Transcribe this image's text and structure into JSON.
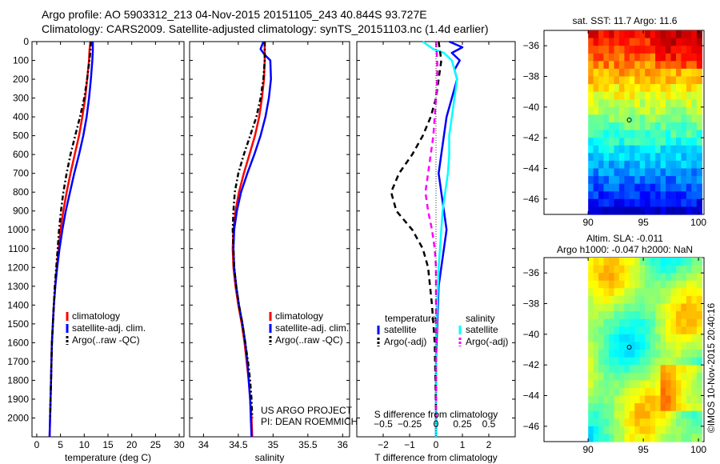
{
  "header": {
    "line1": "Argo profile: AO 5903312_213 04-Nov-2015 20151105_243 40.844S 93.727E",
    "line2": "Climatology: CARS2009. Satellite-adjusted climatology: synTS_20151103.nc (1.4d earlier)"
  },
  "colors": {
    "climatology": "#ff0000",
    "satellite": "#0000ff",
    "argo": "#000000",
    "sat_diff_s": "#00ffff",
    "argo_diff_s": "#ff00ff"
  },
  "credit": {
    "project": "US ARGO PROJECT",
    "pi": "PI: DEAN ROEMMICH"
  },
  "stamp": "©IMOS 10-Nov-2015 20:40:16",
  "chart_data": [
    {
      "type": "line",
      "xlabel": "temperature (deg C)",
      "ylim": [
        2100,
        0
      ],
      "xlim": [
        -1,
        31
      ],
      "xticks": [
        0,
        5,
        10,
        15,
        20,
        25,
        30
      ],
      "yticks": [
        0,
        100,
        200,
        300,
        400,
        500,
        600,
        700,
        800,
        900,
        1000,
        1100,
        1200,
        1300,
        1400,
        1500,
        1600,
        1700,
        1800,
        1900,
        2000
      ],
      "legend": [
        "climatology",
        "satellite-adj. clim.",
        "Argo(..raw -QC)"
      ],
      "series": [
        {
          "name": "climatology",
          "color": "#ff0000",
          "points": [
            [
              11.3,
              0
            ],
            [
              11.1,
              50
            ],
            [
              11.0,
              100
            ],
            [
              10.6,
              200
            ],
            [
              10.2,
              300
            ],
            [
              9.6,
              400
            ],
            [
              8.9,
              500
            ],
            [
              8.0,
              600
            ],
            [
              7.1,
              700
            ],
            [
              6.3,
              800
            ],
            [
              5.6,
              900
            ],
            [
              5.0,
              1000
            ],
            [
              4.6,
              1100
            ],
            [
              4.2,
              1200
            ],
            [
              3.9,
              1300
            ],
            [
              3.6,
              1400
            ],
            [
              3.4,
              1500
            ],
            [
              3.2,
              1600
            ],
            [
              3.1,
              1700
            ],
            [
              3.0,
              1800
            ],
            [
              2.9,
              1900
            ],
            [
              2.8,
              2000
            ],
            [
              2.7,
              2100
            ]
          ]
        },
        {
          "name": "satellite-adj. clim.",
          "color": "#0000ff",
          "points": [
            [
              11.8,
              0
            ],
            [
              11.8,
              50
            ],
            [
              11.7,
              100
            ],
            [
              11.4,
              200
            ],
            [
              11.0,
              300
            ],
            [
              10.5,
              400
            ],
            [
              9.8,
              500
            ],
            [
              8.9,
              600
            ],
            [
              7.9,
              700
            ],
            [
              7.0,
              800
            ],
            [
              6.1,
              900
            ],
            [
              5.4,
              1000
            ],
            [
              4.8,
              1100
            ],
            [
              4.3,
              1200
            ],
            [
              3.9,
              1300
            ],
            [
              3.6,
              1400
            ],
            [
              3.4,
              1500
            ],
            [
              3.2,
              1600
            ],
            [
              3.1,
              1700
            ],
            [
              3.0,
              1800
            ],
            [
              2.9,
              1900
            ],
            [
              2.8,
              2000
            ],
            [
              2.7,
              2100
            ]
          ]
        },
        {
          "name": "Argo(..raw -QC)",
          "color": "#000000",
          "dashed": true,
          "points": [
            [
              11.4,
              0
            ],
            [
              11.3,
              50
            ],
            [
              11.1,
              100
            ],
            [
              10.6,
              200
            ],
            [
              10.0,
              300
            ],
            [
              9.1,
              400
            ],
            [
              8.1,
              500
            ],
            [
              7.1,
              600
            ],
            [
              6.3,
              700
            ],
            [
              5.6,
              800
            ],
            [
              5.1,
              900
            ],
            [
              4.7,
              1000
            ],
            [
              4.4,
              1100
            ],
            [
              4.1,
              1200
            ],
            [
              3.8,
              1300
            ],
            [
              3.6,
              1400
            ],
            [
              3.4,
              1500
            ],
            [
              3.2,
              1600
            ],
            [
              3.1,
              1700
            ],
            [
              3.0,
              1800
            ],
            [
              2.9,
              1900
            ],
            [
              2.8,
              2000
            ]
          ]
        }
      ]
    },
    {
      "type": "line",
      "xlabel": "salinity",
      "ylim": [
        2100,
        0
      ],
      "xlim": [
        33.8,
        36.1
      ],
      "xticks": [
        34,
        34.5,
        35,
        35.5,
        36
      ],
      "xticklabels": [
        "34",
        "34.5",
        "35",
        "35.5",
        "36"
      ],
      "legend": [
        "climatology",
        "satellite-adj. clim.",
        "Argo(..raw -QC)"
      ],
      "series": [
        {
          "name": "climatology",
          "color": "#ff0000",
          "points": [
            [
              34.88,
              0
            ],
            [
              34.88,
              100
            ],
            [
              34.87,
              200
            ],
            [
              34.84,
              300
            ],
            [
              34.8,
              400
            ],
            [
              34.74,
              500
            ],
            [
              34.66,
              600
            ],
            [
              34.58,
              700
            ],
            [
              34.51,
              800
            ],
            [
              34.46,
              900
            ],
            [
              34.43,
              1000
            ],
            [
              34.42,
              1100
            ],
            [
              34.43,
              1200
            ],
            [
              34.46,
              1300
            ],
            [
              34.5,
              1400
            ],
            [
              34.55,
              1500
            ],
            [
              34.59,
              1600
            ],
            [
              34.62,
              1700
            ],
            [
              34.65,
              1800
            ],
            [
              34.67,
              1900
            ],
            [
              34.69,
              2000
            ],
            [
              34.7,
              2100
            ]
          ]
        },
        {
          "name": "satellite-adj. clim.",
          "color": "#0000ff",
          "points": [
            [
              34.86,
              0
            ],
            [
              34.82,
              40
            ],
            [
              34.88,
              70
            ],
            [
              34.96,
              100
            ],
            [
              34.97,
              200
            ],
            [
              34.94,
              300
            ],
            [
              34.89,
              400
            ],
            [
              34.82,
              500
            ],
            [
              34.73,
              600
            ],
            [
              34.63,
              700
            ],
            [
              34.54,
              800
            ],
            [
              34.48,
              900
            ],
            [
              34.44,
              1000
            ],
            [
              34.43,
              1100
            ],
            [
              34.44,
              1200
            ],
            [
              34.47,
              1300
            ],
            [
              34.51,
              1400
            ],
            [
              34.56,
              1500
            ],
            [
              34.6,
              1600
            ],
            [
              34.63,
              1700
            ],
            [
              34.65,
              1800
            ],
            [
              34.67,
              1900
            ],
            [
              34.68,
              2000
            ],
            [
              34.69,
              2100
            ]
          ]
        },
        {
          "name": "Argo(..raw -QC)",
          "color": "#000000",
          "dashed": true,
          "points": [
            [
              34.88,
              0
            ],
            [
              34.88,
              100
            ],
            [
              34.86,
              200
            ],
            [
              34.82,
              300
            ],
            [
              34.76,
              400
            ],
            [
              34.67,
              500
            ],
            [
              34.58,
              600
            ],
            [
              34.5,
              700
            ],
            [
              34.45,
              800
            ],
            [
              34.43,
              900
            ],
            [
              34.42,
              1000
            ],
            [
              34.43,
              1100
            ],
            [
              34.44,
              1200
            ],
            [
              34.47,
              1300
            ],
            [
              34.51,
              1400
            ],
            [
              34.56,
              1500
            ],
            [
              34.6,
              1600
            ],
            [
              34.64,
              1700
            ],
            [
              34.67,
              1800
            ],
            [
              34.69,
              1900
            ],
            [
              34.7,
              2000
            ]
          ]
        }
      ]
    },
    {
      "type": "line",
      "xlabel": "T difference from climatology",
      "xlabel2": "S difference from climatology",
      "ylim": [
        2100,
        0
      ],
      "xlim": [
        -3,
        3
      ],
      "xticks": [
        -2,
        -1,
        0,
        1,
        2
      ],
      "xticklabels": [
        "−2",
        "−1",
        "0",
        "1",
        "2"
      ],
      "xticks2": [
        -0.5,
        -0.25,
        0,
        0.25,
        0.5
      ],
      "xticklabels2": [
        "−0.5",
        "−0.25",
        "0",
        "0.25",
        "0.5"
      ],
      "legend_titles": [
        "temperature",
        "salinity"
      ],
      "legend": [
        "satellite",
        "Argo(-adj)",
        "satellite",
        "Argo(-adj)"
      ],
      "series": [
        {
          "name": "temperature satellite",
          "color": "#0000ff",
          "points": [
            [
              0.5,
              0
            ],
            [
              1.0,
              30
            ],
            [
              0.6,
              60
            ],
            [
              0.9,
              100
            ],
            [
              0.7,
              150
            ],
            [
              0.8,
              200
            ],
            [
              0.6,
              300
            ],
            [
              0.4,
              400
            ],
            [
              0.3,
              500
            ],
            [
              0.2,
              600
            ],
            [
              0.1,
              700
            ],
            [
              0.2,
              800
            ],
            [
              0.3,
              900
            ],
            [
              0.4,
              1000
            ],
            [
              0.3,
              1100
            ],
            [
              0.2,
              1200
            ],
            [
              0.1,
              1300
            ],
            [
              0.05,
              1500
            ],
            [
              0.0,
              1700
            ],
            [
              0.0,
              2100
            ]
          ]
        },
        {
          "name": "salinity satellite",
          "color": "#00ffff",
          "points": [
            [
              -0.5,
              0
            ],
            [
              -0.1,
              40
            ],
            [
              0.3,
              60
            ],
            [
              0.6,
              100
            ],
            [
              0.8,
              200
            ],
            [
              0.7,
              300
            ],
            [
              0.6,
              400
            ],
            [
              0.5,
              500
            ],
            [
              0.5,
              600
            ],
            [
              0.45,
              700
            ],
            [
              0.35,
              800
            ],
            [
              0.25,
              900
            ],
            [
              0.2,
              1000
            ],
            [
              0.15,
              1100
            ],
            [
              0.1,
              1200
            ],
            [
              0.05,
              1400
            ],
            [
              0.0,
              1600
            ],
            [
              0.0,
              2100
            ]
          ]
        },
        {
          "name": "temperature Argo(-adj)",
          "color": "#000000",
          "dashed": true,
          "points": [
            [
              0.1,
              0
            ],
            [
              0.2,
              100
            ],
            [
              0.1,
              200
            ],
            [
              0.0,
              300
            ],
            [
              -0.2,
              400
            ],
            [
              -0.5,
              500
            ],
            [
              -0.9,
              600
            ],
            [
              -1.4,
              700
            ],
            [
              -1.7,
              800
            ],
            [
              -1.5,
              900
            ],
            [
              -0.9,
              1000
            ],
            [
              -0.5,
              1100
            ],
            [
              -0.3,
              1200
            ],
            [
              -0.15,
              1400
            ],
            [
              -0.05,
              1600
            ],
            [
              -0.02,
              1800
            ],
            [
              0.0,
              2000
            ]
          ]
        },
        {
          "name": "salinity Argo(-adj)",
          "color": "#ff00ff",
          "dashed": true,
          "points": [
            [
              0.0,
              0
            ],
            [
              0.05,
              100
            ],
            [
              0.05,
              200
            ],
            [
              0.0,
              300
            ],
            [
              -0.05,
              400
            ],
            [
              -0.1,
              500
            ],
            [
              -0.2,
              600
            ],
            [
              -0.3,
              700
            ],
            [
              -0.4,
              800
            ],
            [
              -0.3,
              900
            ],
            [
              -0.15,
              1000
            ],
            [
              -0.05,
              1100
            ],
            [
              0.0,
              1200
            ],
            [
              0.0,
              1400
            ],
            [
              0.0,
              1600
            ],
            [
              0.0,
              1800
            ],
            [
              0.0,
              2000
            ]
          ]
        }
      ]
    },
    {
      "type": "heatmap",
      "title": "sat. SST: 11.7  Argo: 11.6",
      "xlim": [
        86,
        100.5
      ],
      "ylim": [
        -47,
        -35
      ],
      "xticks": [
        90,
        95,
        100
      ],
      "yticks": [
        -36,
        -38,
        -40,
        -42,
        -44,
        -46
      ]
    },
    {
      "type": "heatmap",
      "title": "Altim. SLA: -0.011",
      "title2": "Argo h1000: -0.047  h2000: NaN",
      "xlim": [
        86,
        100.5
      ],
      "ylim": [
        -47,
        -35
      ],
      "xticks": [
        90,
        95,
        100
      ],
      "yticks": [
        -36,
        -38,
        -40,
        -42,
        -44,
        -46
      ]
    }
  ]
}
